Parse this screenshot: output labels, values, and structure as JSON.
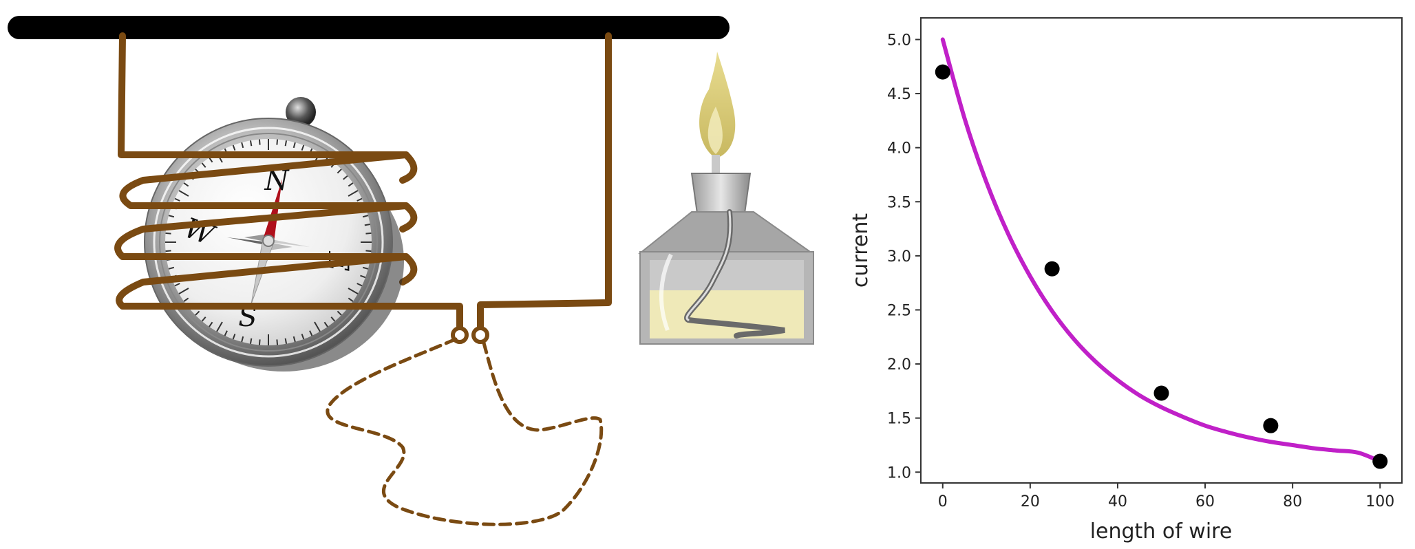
{
  "compass": {
    "north_label": "N",
    "south_label": "S",
    "west_label": "W",
    "east_label": "E"
  },
  "chart_data": {
    "type": "scatter",
    "title": "",
    "xlabel": "length of wire",
    "ylabel": "current",
    "xlim": [
      -5,
      105
    ],
    "ylim": [
      0.9,
      5.2
    ],
    "xticks": [
      0,
      20,
      40,
      60,
      80,
      100
    ],
    "yticks": [
      1.0,
      1.5,
      2.0,
      2.5,
      3.0,
      3.5,
      4.0,
      4.5,
      5.0
    ],
    "grid": false,
    "legend": "none",
    "points": {
      "x": [
        0,
        25,
        50,
        75,
        100
      ],
      "y": [
        4.7,
        2.88,
        1.73,
        1.43,
        1.1
      ],
      "color": "#000000"
    },
    "fit_curve": {
      "kind": "exponential decay",
      "color": "#c020c8",
      "x": [
        0,
        5,
        10,
        15,
        20,
        25,
        30,
        35,
        40,
        45,
        50,
        55,
        60,
        65,
        70,
        75,
        80,
        85,
        90,
        95,
        100
      ],
      "y": [
        5.0,
        4.27,
        3.68,
        3.2,
        2.81,
        2.49,
        2.23,
        2.02,
        1.85,
        1.71,
        1.6,
        1.51,
        1.43,
        1.37,
        1.32,
        1.28,
        1.25,
        1.22,
        1.2,
        1.18,
        1.1
      ]
    }
  }
}
